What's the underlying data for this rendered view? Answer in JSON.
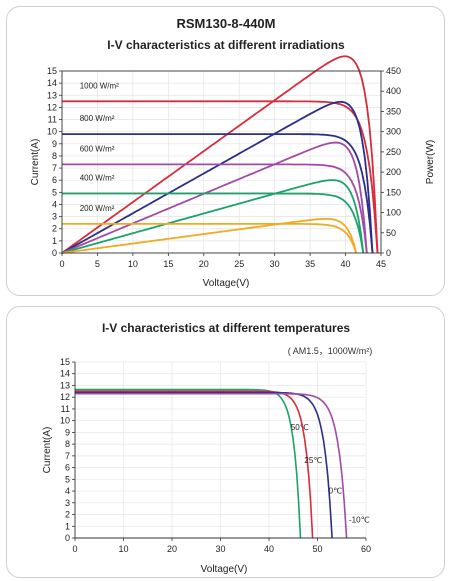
{
  "chart_data": [
    {
      "type": "line",
      "title": "RSM130-8-440M",
      "subtitle": "I-V characteristics at different irradiations",
      "xlabel": "Voltage(V)",
      "ylabel": "Current(A)",
      "y2label": "Power(W)",
      "xlim": [
        0,
        45
      ],
      "ylim": [
        0,
        15
      ],
      "y2lim": [
        0,
        450
      ],
      "xticks": [
        0,
        5,
        10,
        15,
        20,
        25,
        30,
        35,
        40,
        45
      ],
      "yticks": [
        0,
        1,
        2,
        3,
        4,
        5,
        6,
        7,
        8,
        9,
        10,
        11,
        12,
        13,
        14,
        15
      ],
      "y2ticks": [
        0,
        50,
        100,
        150,
        200,
        250,
        300,
        350,
        400,
        450
      ],
      "series": [
        {
          "name": "1000 W/m²",
          "color": "#d92b3a",
          "isc": 12.5,
          "voc": 44.5,
          "vmp": 35.8,
          "imp": 12.2,
          "pmax": 440
        },
        {
          "name": "800 W/m²",
          "color": "#2b2f8a",
          "isc": 9.8,
          "voc": 43.8,
          "vmp": 35.8,
          "imp": 9.8,
          "pmax": 352
        },
        {
          "name": "600 W/m²",
          "color": "#a24aa8",
          "isc": 7.3,
          "voc": 43.0,
          "vmp": 35.8,
          "imp": 7.3,
          "pmax": 262
        },
        {
          "name": "400 W/m²",
          "color": "#1ba36a",
          "isc": 4.9,
          "voc": 42.5,
          "vmp": 35.8,
          "imp": 4.9,
          "pmax": 175
        },
        {
          "name": "200 W/m²",
          "color": "#f0aa22",
          "isc": 2.4,
          "voc": 41.5,
          "vmp": 35.0,
          "imp": 2.4,
          "pmax": 82
        }
      ]
    },
    {
      "type": "line",
      "title": "I-V characteristics at different temperatures",
      "note": "( AM1.5，1000W/m²)",
      "xlabel": "Voltage(V)",
      "ylabel": "Current(A)",
      "xlim": [
        0,
        60
      ],
      "ylim": [
        0,
        15
      ],
      "xticks": [
        0,
        10,
        20,
        30,
        40,
        50,
        60
      ],
      "yticks": [
        0,
        1,
        2,
        3,
        4,
        5,
        6,
        7,
        8,
        9,
        10,
        11,
        12,
        13,
        14,
        15
      ],
      "series": [
        {
          "name": "50℃",
          "color": "#1ba36a",
          "isc": 12.65,
          "voc": 46.5,
          "label_at": [
            44.5,
            9.2
          ]
        },
        {
          "name": "25℃",
          "color": "#d92b3a",
          "isc": 12.5,
          "voc": 49.0,
          "label_at": [
            47.3,
            6.4
          ]
        },
        {
          "name": "0℃",
          "color": "#2b2f8a",
          "isc": 12.4,
          "voc": 53.0,
          "label_at": [
            52.3,
            3.8
          ]
        },
        {
          "name": "-10℃",
          "color": "#a24aa8",
          "isc": 12.3,
          "voc": 56.0,
          "label_at": [
            56.5,
            1.3
          ]
        }
      ]
    }
  ]
}
